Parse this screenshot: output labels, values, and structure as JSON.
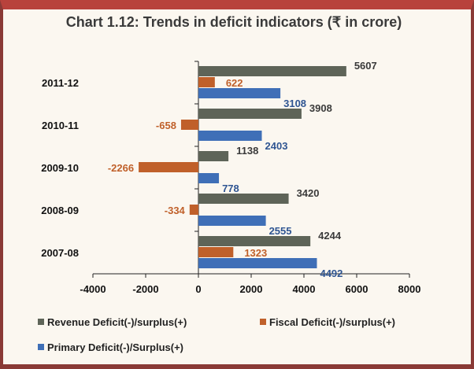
{
  "chart_data": {
    "type": "bar",
    "orientation": "horizontal",
    "title": "Chart 1.12: Trends in deficit indicators (₹ in crore)",
    "categories": [
      "2011-12",
      "2010-11",
      "2009-10",
      "2008-09",
      "2007-08"
    ],
    "series": [
      {
        "name": "Revenue Deficit(-)/surplus(+)",
        "color": "#5e6458",
        "label_color": "#3a3a3a",
        "values": [
          5607,
          3908,
          1138,
          3420,
          4244
        ]
      },
      {
        "name": "Fiscal Deficit(-)/surplus(+)",
        "color": "#c0602a",
        "label_color": "#c0602a",
        "values": [
          622,
          -658,
          -2266,
          -334,
          1323
        ]
      },
      {
        "name": "Primary Deficit(-)/Surplus(+)",
        "color": "#3f6fb7",
        "label_color": "#2f5592",
        "values": [
          3108,
          2403,
          778,
          2555,
          4492
        ]
      }
    ],
    "xlim": [
      -4000,
      8000
    ],
    "xticks": [
      "-4000",
      "-2000",
      "0",
      "2000",
      "4000",
      "6000",
      "8000"
    ],
    "xlabel": "",
    "ylabel": "",
    "grid": false,
    "legend_position": "bottom"
  }
}
